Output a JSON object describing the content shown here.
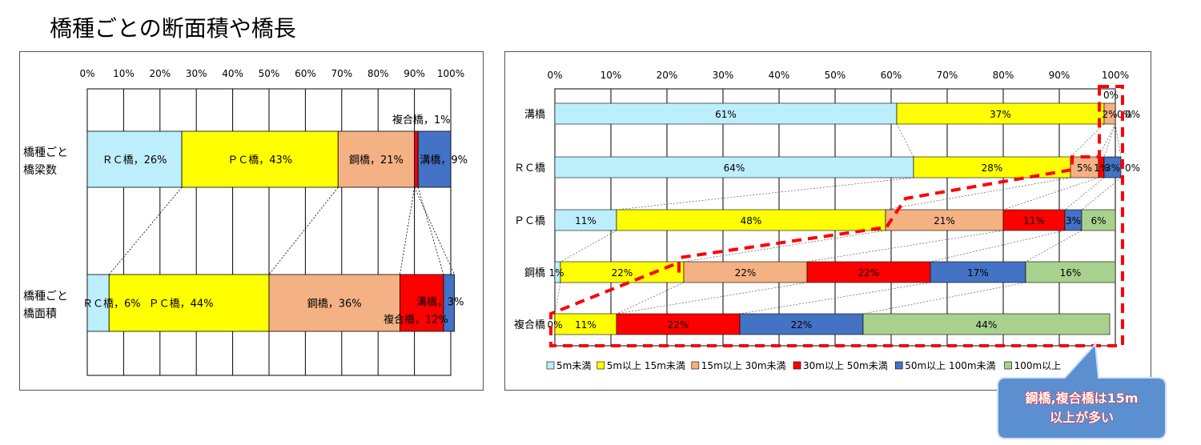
{
  "page": {
    "title": "橋種ごとの断面積や橋長"
  },
  "colors": {
    "rc": "#bdeefb",
    "pc": "#ffff00",
    "steel": "#f4b183",
    "channel": "#4472c4",
    "composite": "#ff0000",
    "len_lt5": "#bdeefb",
    "len_5_15": "#ffff00",
    "len_15_30": "#f4b183",
    "len_30_50": "#ff0000",
    "len_50_100": "#4472c4",
    "len_ge100": "#a9d18e",
    "highlight": "#ff0000",
    "callout_fill": "#5b8fd0"
  },
  "chart_data": [
    {
      "type": "bar",
      "orientation": "horizontal",
      "stacked": "percent",
      "x_ticks": [
        "0%",
        "10%",
        "20%",
        "30%",
        "40%",
        "50%",
        "60%",
        "70%",
        "80%",
        "90%",
        "100%"
      ],
      "xlim": [
        0,
        100
      ],
      "categories": [
        {
          "label_lines": [
            "橋種ごと",
            "橋梁数"
          ]
        },
        {
          "label_lines": [
            "橋種ごと",
            "橋面積"
          ]
        }
      ],
      "series": [
        {
          "name": "ＲＣ橋",
          "values": [
            26,
            6
          ],
          "color_key": "rc"
        },
        {
          "name": "ＰＣ橋",
          "values": [
            43,
            44
          ],
          "color_key": "pc"
        },
        {
          "name": "鋼橋",
          "values": [
            21,
            36
          ],
          "color_key": "steel"
        },
        {
          "name": "複合橋",
          "values": [
            1,
            12
          ],
          "color_key": "composite"
        },
        {
          "name": "溝橋",
          "values": [
            9,
            3
          ],
          "color_key": "channel"
        }
      ],
      "segment_order": [
        [
          "ＲＣ橋",
          "ＰＣ橋",
          "鋼橋",
          "複合橋",
          "溝橋"
        ],
        [
          "ＲＣ橋",
          "ＰＣ橋",
          "鋼橋",
          "複合橋",
          "溝橋"
        ]
      ],
      "data_labels": [
        [
          {
            "text": "ＲＣ橋，26%",
            "series": "ＲＣ橋"
          },
          {
            "text": "ＰＣ橋，43%",
            "series": "ＰＣ橋"
          },
          {
            "text": "鋼橋，21%",
            "series": "鋼橋"
          },
          {
            "text": "複合橋，1%",
            "series": "複合橋",
            "position": "above"
          },
          {
            "text": "溝橋，9%",
            "series": "溝橋"
          }
        ],
        [
          {
            "text": "ＲＣ橋，6%",
            "series": "ＲＣ橋"
          },
          {
            "text": "ＰＣ橋，44%",
            "series": "ＰＣ橋"
          },
          {
            "text": "鋼橋，36%",
            "series": "鋼橋"
          },
          {
            "text": "溝橋，3%",
            "series": "溝橋"
          },
          {
            "text": "複合橋，12%",
            "series": "複合橋",
            "position": "below"
          }
        ]
      ],
      "grid": true
    },
    {
      "type": "bar",
      "orientation": "horizontal",
      "stacked": "percent",
      "x_ticks": [
        "0%",
        "10%",
        "20%",
        "30%",
        "40%",
        "50%",
        "60%",
        "70%",
        "80%",
        "90%",
        "100%"
      ],
      "xlim": [
        0,
        100
      ],
      "categories": [
        "溝橋",
        "ＲＣ橋",
        "ＰＣ橋",
        "鋼橋",
        "複合橋"
      ],
      "series": [
        {
          "name": "5m未満",
          "values": [
            61,
            64,
            11,
            1,
            0
          ],
          "color_key": "len_lt5"
        },
        {
          "name": "5m以上 15m未満",
          "values": [
            37,
            28,
            48,
            22,
            11
          ],
          "color_key": "len_5_15"
        },
        {
          "name": "15m以上 30m未満",
          "values": [
            2,
            5,
            21,
            22,
            0
          ],
          "color_key": "len_15_30"
        },
        {
          "name": "30m以上 50m未満",
          "values": [
            0,
            1,
            11,
            22,
            22
          ],
          "color_key": "len_30_50"
        },
        {
          "name": "50m以上 100m未満",
          "values": [
            0,
            3,
            3,
            17,
            22
          ],
          "color_key": "len_50_100"
        },
        {
          "name": "100m以上",
          "values": [
            0,
            0,
            6,
            16,
            44
          ],
          "color_key": "len_ge100"
        }
      ],
      "data_labels": [
        [
          "61%",
          "37%",
          "2%",
          "0%",
          "0%",
          "0%"
        ],
        [
          "64%",
          "28%",
          "5%",
          "1%",
          "3%",
          "0%"
        ],
        [
          "11%",
          "48%",
          "21%",
          "11%",
          "3%",
          "6%"
        ],
        [
          "1%",
          "22%",
          "22%",
          "22%",
          "17%",
          "16%"
        ],
        [
          "0%",
          "11%",
          "",
          "22%",
          "22%",
          "44%"
        ]
      ],
      "legend_position": "bottom",
      "grid": true
    }
  ],
  "callout": {
    "lines": [
      "鋼橋,複合橋は15m",
      "以上が多い"
    ]
  }
}
